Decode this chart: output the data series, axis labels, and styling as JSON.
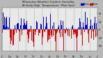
{
  "title_line1": "Milwaukee Weather Outdoor Humidity",
  "title_line2": "At Daily High  Temperature  (Past Year)",
  "plot_bg_color": "#e8e8e8",
  "bar_color_above": "#0000dd",
  "bar_color_below": "#dd0000",
  "n_points": 365,
  "y_min": -55,
  "y_max": 55,
  "legend_label_blue": "Above",
  "legend_label_red": "Below",
  "title_fontsize": 2.8,
  "tick_fontsize": 2.3,
  "grid_color": "#888888",
  "outer_bg": "#b8b8b8",
  "right_panel_color": "#c8c8c8",
  "yticks": [
    40,
    20,
    0,
    -20,
    -40
  ],
  "ytick_labels": [
    "40",
    "20",
    "0",
    "-20",
    "-40"
  ],
  "n_months": 13,
  "month_labels": [
    "Jul",
    "Aug",
    "Sep",
    "Oct",
    "Nov",
    "Dec",
    "Jan",
    "Feb",
    "Mar",
    "Apr",
    "May",
    "Jun",
    "Jul"
  ]
}
